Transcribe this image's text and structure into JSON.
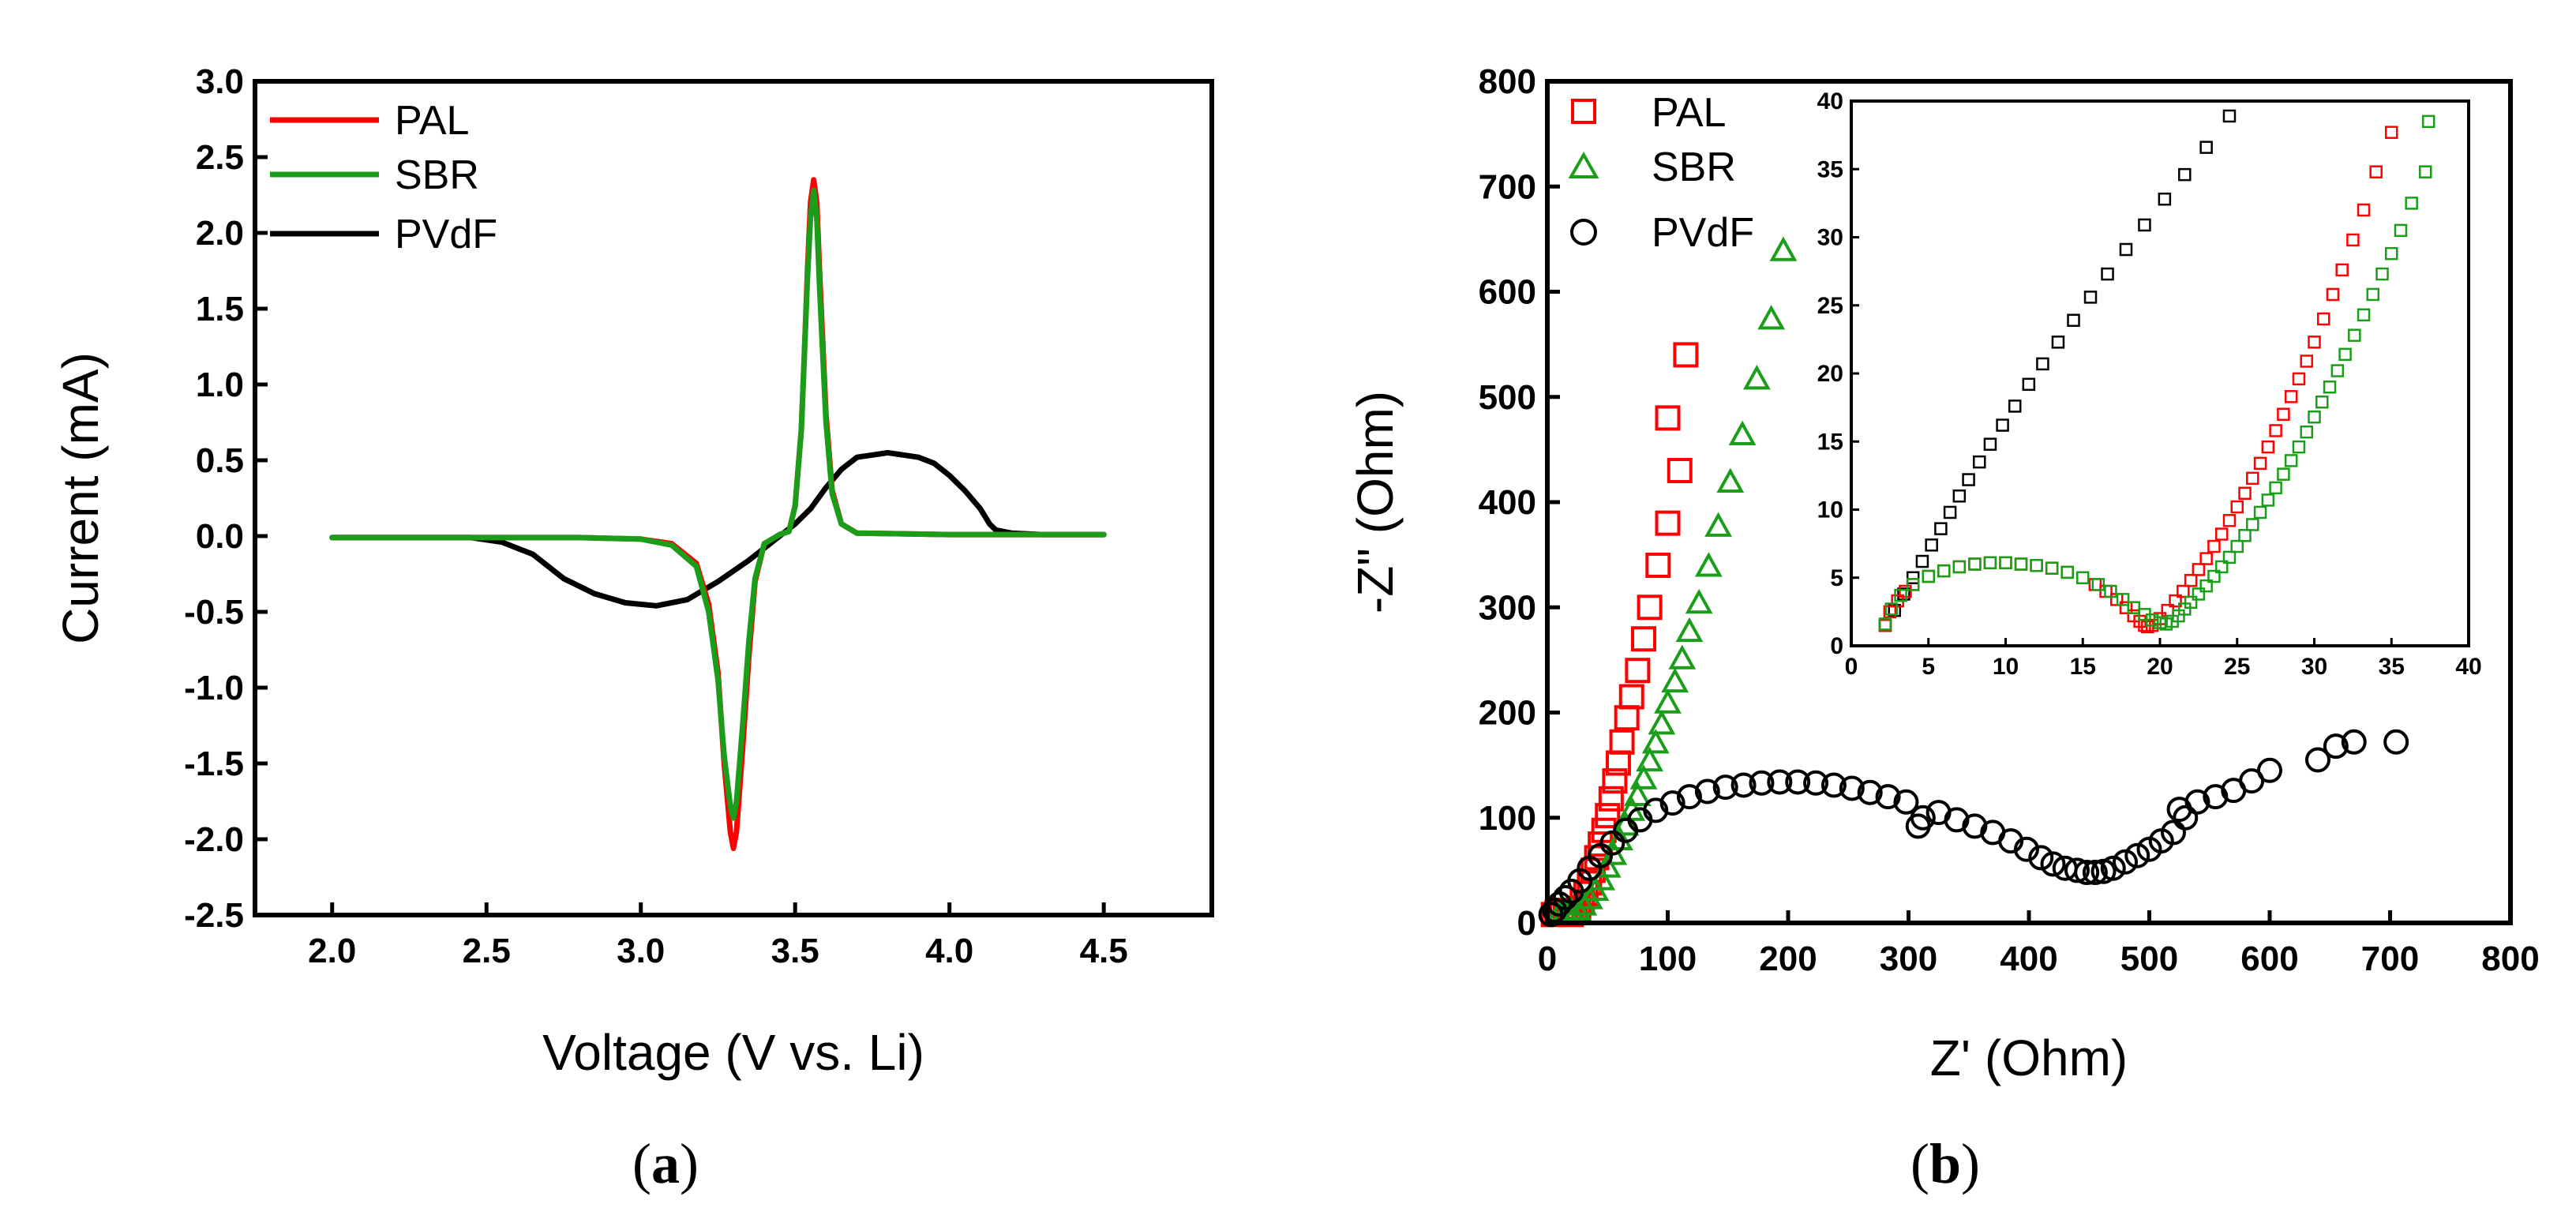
{
  "colors": {
    "pal": "#ff0000",
    "sbr": "#1a9e1a",
    "pvdf": "#000000"
  },
  "chart_data": [
    {
      "type": "line",
      "caption_letter": "a",
      "xlabel": "Voltage (V vs. Li)",
      "ylabel": "Current (mA)",
      "xlim": [
        1.75,
        4.85
      ],
      "ylim": [
        -2.5,
        3.0
      ],
      "xticks": [
        2.0,
        2.5,
        3.0,
        3.5,
        4.0,
        4.5
      ],
      "xtick_labels": [
        "2.0",
        "2.5",
        "3.0",
        "3.5",
        "4.0",
        "4.5"
      ],
      "yticks": [
        -2.5,
        -2.0,
        -1.5,
        -1.0,
        -0.5,
        0.0,
        0.5,
        1.0,
        1.5,
        2.0,
        2.5,
        3.0
      ],
      "ytick_labels": [
        "-2.5",
        "-2.0",
        "-1.5",
        "-1.0",
        "-0.5",
        "0.0",
        "0.5",
        "1.0",
        "1.5",
        "2.0",
        "2.5",
        "3.0"
      ],
      "legend": [
        "PAL",
        "SBR",
        "PVdF"
      ],
      "series": [
        {
          "name": "PVdF",
          "color_key": "pvdf",
          "x": [
            2.0,
            2.3,
            2.45,
            2.55,
            2.65,
            2.75,
            2.85,
            2.95,
            3.05,
            3.15,
            3.25,
            3.35,
            3.4,
            3.45,
            3.5,
            3.55,
            3.6,
            3.65,
            3.7,
            3.8,
            3.9,
            3.95,
            4.0,
            4.05,
            4.1,
            4.13,
            4.15,
            4.2,
            4.3,
            4.5
          ],
          "y": [
            -0.01,
            -0.01,
            -0.01,
            -0.04,
            -0.12,
            -0.28,
            -0.38,
            -0.44,
            -0.46,
            -0.42,
            -0.3,
            -0.16,
            -0.08,
            0.0,
            0.08,
            0.18,
            0.32,
            0.44,
            0.52,
            0.55,
            0.52,
            0.48,
            0.4,
            0.3,
            0.18,
            0.08,
            0.04,
            0.02,
            0.01,
            0.01
          ]
        },
        {
          "name": "PAL",
          "color_key": "pal",
          "x": [
            2.0,
            2.8,
            3.0,
            3.1,
            3.18,
            3.22,
            3.25,
            3.27,
            3.29,
            3.3,
            3.31,
            3.33,
            3.35,
            3.37,
            3.4,
            3.45,
            3.48,
            3.5,
            3.52,
            3.53,
            3.54,
            3.55,
            3.56,
            3.57,
            3.58,
            3.6,
            3.62,
            3.65,
            3.7,
            4.0,
            4.5
          ],
          "y": [
            -0.01,
            -0.01,
            -0.02,
            -0.05,
            -0.18,
            -0.45,
            -0.9,
            -1.5,
            -1.95,
            -2.06,
            -1.95,
            -1.4,
            -0.8,
            -0.3,
            -0.05,
            0.01,
            0.03,
            0.2,
            0.7,
            1.2,
            1.75,
            2.2,
            2.35,
            2.2,
            1.7,
            0.8,
            0.3,
            0.08,
            0.02,
            0.01,
            0.01
          ]
        },
        {
          "name": "SBR",
          "color_key": "sbr",
          "x": [
            2.0,
            2.8,
            3.0,
            3.1,
            3.18,
            3.22,
            3.25,
            3.27,
            3.29,
            3.3,
            3.31,
            3.33,
            3.35,
            3.37,
            3.4,
            3.45,
            3.48,
            3.5,
            3.52,
            3.53,
            3.54,
            3.55,
            3.56,
            3.57,
            3.58,
            3.6,
            3.62,
            3.65,
            3.7,
            4.0,
            4.5
          ],
          "y": [
            -0.01,
            -0.01,
            -0.02,
            -0.06,
            -0.2,
            -0.5,
            -0.95,
            -1.45,
            -1.78,
            -1.86,
            -1.75,
            -1.25,
            -0.7,
            -0.28,
            -0.05,
            0.01,
            0.03,
            0.2,
            0.7,
            1.2,
            1.7,
            2.1,
            2.28,
            2.1,
            1.6,
            0.75,
            0.28,
            0.08,
            0.02,
            0.01,
            0.01
          ]
        }
      ]
    },
    {
      "type": "scatter",
      "caption_letter": "b",
      "xlabel": "Z' (Ohm)",
      "ylabel": "-Z\" (Ohm)",
      "xlim": [
        0,
        800
      ],
      "ylim": [
        0,
        800
      ],
      "xticks": [
        0,
        100,
        200,
        300,
        400,
        500,
        600,
        700,
        800
      ],
      "xtick_labels": [
        "0",
        "100",
        "200",
        "300",
        "400",
        "500",
        "600",
        "700",
        "800"
      ],
      "yticks": [
        0,
        100,
        200,
        300,
        400,
        500,
        600,
        700,
        800
      ],
      "ytick_labels": [
        "0",
        "100",
        "200",
        "300",
        "400",
        "500",
        "600",
        "700",
        "800"
      ],
      "legend": [
        "PAL",
        "SBR",
        "PVdF"
      ],
      "series": [
        {
          "name": "PAL",
          "marker": "square",
          "color_key": "pal",
          "x": [
            5,
            8,
            12,
            15,
            18,
            20,
            23,
            26,
            29,
            32,
            35,
            38,
            41,
            44,
            47,
            50,
            53,
            56,
            59,
            62,
            66,
            70,
            75,
            80,
            85,
            92,
            100,
            110
          ],
          "y": [
            8,
            10,
            12,
            12,
            10,
            8,
            10,
            14,
            20,
            28,
            38,
            50,
            62,
            75,
            88,
            102,
            118,
            135,
            152,
            172,
            195,
            215,
            240,
            270,
            300,
            340,
            380,
            430
          ]
        },
        {
          "name": "PAL",
          "marker": "square",
          "color_key": "pal",
          "x": [
            100,
            115
          ],
          "y": [
            480,
            540
          ]
        },
        {
          "name": "SBR",
          "marker": "triangle",
          "color_key": "sbr",
          "x": [
            10,
            15,
            20,
            25,
            30,
            35,
            40,
            45,
            50,
            55,
            60,
            65,
            70,
            75,
            80,
            85,
            90,
            95,
            100,
            106,
            112,
            118,
            126,
            134,
            142,
            152,
            162,
            174,
            186,
            196
          ],
          "y": [
            10,
            12,
            12,
            14,
            18,
            24,
            32,
            42,
            54,
            66,
            80,
            94,
            108,
            122,
            138,
            155,
            172,
            190,
            210,
            230,
            252,
            278,
            305,
            340,
            378,
            420,
            465,
            518,
            575,
            640
          ]
        },
        {
          "name": "PVdF",
          "marker": "circle",
          "color_key": "pvdf",
          "x": [
            3,
            6,
            10,
            15,
            20,
            27,
            35,
            44,
            54,
            65,
            77,
            90,
            104,
            118,
            133,
            148,
            163,
            178,
            193,
            208,
            223,
            238,
            253,
            268,
            283,
            298,
            308,
            312,
            325,
            340,
            355,
            370,
            385,
            398,
            410,
            420,
            430,
            440,
            448,
            455,
            462,
            470,
            480,
            490,
            500,
            510,
            520,
            525,
            530,
            540,
            555,
            570,
            585,
            600,
            640,
            655,
            670,
            705
          ],
          "y": [
            8,
            12,
            18,
            24,
            30,
            40,
            52,
            64,
            76,
            88,
            98,
            107,
            114,
            120,
            125,
            129,
            131,
            133,
            134,
            134,
            133,
            131,
            128,
            124,
            120,
            115,
            92,
            100,
            105,
            98,
            92,
            86,
            78,
            70,
            62,
            56,
            52,
            50,
            48,
            48,
            49,
            52,
            58,
            64,
            70,
            78,
            86,
            108,
            100,
            115,
            120,
            126,
            135,
            145,
            155,
            168,
            172,
            172
          ]
        }
      ],
      "inset": {
        "xlim": [
          0,
          40
        ],
        "ylim": [
          0,
          40
        ],
        "xticks": [
          0,
          5,
          10,
          15,
          20,
          25,
          30,
          35,
          40
        ],
        "xtick_labels": [
          "0",
          "5",
          "10",
          "15",
          "20",
          "25",
          "30",
          "35",
          "40"
        ],
        "yticks": [
          0,
          5,
          10,
          15,
          20,
          25,
          30,
          35,
          40
        ],
        "ytick_labels": [
          "0",
          "5",
          "10",
          "15",
          "20",
          "25",
          "30",
          "35",
          "40"
        ],
        "series": [
          {
            "name": "PVdF",
            "marker": "square",
            "color_key": "pvdf",
            "x": [
              2.2,
              2.8,
              3.4,
              4.0,
              4.6,
              5.2,
              5.8,
              6.4,
              7.0,
              7.6,
              8.3,
              9.0,
              9.8,
              10.6,
              11.5,
              12.4,
              13.4,
              14.4,
              15.5,
              16.6,
              17.8,
              19.0,
              20.3,
              21.6,
              23.0,
              24.5
            ],
            "y": [
              1.5,
              2.6,
              3.8,
              5.0,
              6.2,
              7.4,
              8.6,
              9.8,
              11.0,
              12.2,
              13.5,
              14.8,
              16.2,
              17.6,
              19.2,
              20.7,
              22.3,
              23.9,
              25.6,
              27.3,
              29.1,
              30.9,
              32.8,
              34.6,
              36.6,
              38.9
            ]
          },
          {
            "name": "PAL",
            "marker": "square",
            "color_key": "pal",
            "x": [
              2.2,
              2.5,
              3.0,
              3.5,
              4.0,
              5.0,
              6.0,
              7.0,
              8.0,
              9.0,
              10.0,
              11.0,
              12.0,
              13.0,
              14.0,
              15.0,
              15.8,
              16.5,
              17.2,
              17.8,
              18.3,
              18.7,
              19.0,
              19.2,
              19.5,
              20.0,
              20.5,
              21.0,
              21.5,
              22.0,
              22.5,
              23.0,
              23.5,
              24.0,
              24.5,
              25.0,
              25.5,
              26.0,
              26.5,
              27.0,
              27.5,
              28.0,
              28.5,
              29.0,
              29.5,
              30.0,
              30.6,
              31.2,
              31.8,
              32.5,
              33.2,
              34.0,
              35.0
            ],
            "y": [
              1.5,
              2.5,
              3.3,
              4.0,
              4.5,
              5.1,
              5.5,
              5.8,
              6.0,
              6.1,
              6.1,
              6.0,
              5.9,
              5.7,
              5.4,
              5.0,
              4.5,
              4.0,
              3.4,
              2.8,
              2.2,
              1.8,
              1.5,
              1.4,
              1.5,
              2.0,
              2.6,
              3.3,
              4.0,
              4.8,
              5.6,
              6.4,
              7.3,
              8.2,
              9.2,
              10.2,
              11.2,
              12.3,
              13.4,
              14.6,
              15.8,
              17.0,
              18.3,
              19.6,
              20.9,
              22.3,
              24.0,
              25.8,
              27.6,
              29.8,
              32.0,
              34.8,
              37.7
            ]
          },
          {
            "name": "SBR",
            "marker": "square",
            "color_key": "sbr",
            "x": [
              2.2,
              2.6,
              3.2,
              4.0,
              5.0,
              6.0,
              7.0,
              8.0,
              9.0,
              10.0,
              11.0,
              12.0,
              13.0,
              14.0,
              15.0,
              16.0,
              16.8,
              17.6,
              18.3,
              19.0,
              19.5,
              20.0,
              20.4,
              20.8,
              21.2,
              21.6,
              22.0,
              22.5,
              23.0,
              23.5,
              24.0,
              24.5,
              25.0,
              25.5,
              26.0,
              26.5,
              27.0,
              27.5,
              28.0,
              28.5,
              29.0,
              29.5,
              30.0,
              30.5,
              31.0,
              31.5,
              32.0,
              32.6,
              33.2,
              33.8,
              34.4,
              35.0,
              35.6,
              36.3,
              37.2
            ],
            "y": [
              1.6,
              2.7,
              3.7,
              4.5,
              5.1,
              5.5,
              5.8,
              6.0,
              6.1,
              6.1,
              6.0,
              5.9,
              5.7,
              5.4,
              5.0,
              4.5,
              4.0,
              3.4,
              2.8,
              2.3,
              1.9,
              1.7,
              1.6,
              1.8,
              2.2,
              2.7,
              3.2,
              3.8,
              4.4,
              5.1,
              5.8,
              6.5,
              7.3,
              8.1,
              8.9,
              9.8,
              10.7,
              11.6,
              12.6,
              13.6,
              14.6,
              15.7,
              16.8,
              17.9,
              19.0,
              20.2,
              21.4,
              22.8,
              24.3,
              25.8,
              27.3,
              28.8,
              30.5,
              32.5,
              34.8
            ]
          },
          {
            "name": "SBR",
            "marker": "square",
            "color_key": "sbr",
            "x": [
              37.4
            ],
            "y": [
              38.5
            ]
          }
        ]
      }
    }
  ]
}
